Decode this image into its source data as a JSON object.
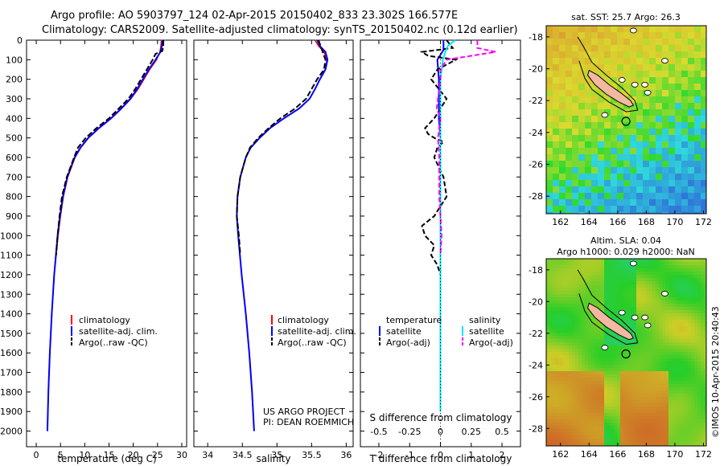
{
  "header": {
    "line1": "Argo profile: AO 5903797_124 02-Apr-2015 20150402_833 23.302S 166.577E",
    "line2": "Climatology: CARS2009. Satellite-adjusted climatology: synTS_20150402.nc (0.12d earlier)"
  },
  "credits": {
    "project": "US ARGO PROJECT",
    "pi": "PI: DEAN ROEMMICH",
    "imos": "©IMOS 10-Apr-2015 20:40:43"
  },
  "colors": {
    "climatology": "#ff0000",
    "satellite": "#0000ff",
    "argo": "#000000",
    "sat_salinity": "#00e5ff",
    "argo_salinity": "#ff00ff",
    "land": "#f2b8a0"
  },
  "chart_data": [
    {
      "type": "line",
      "id": "temperature",
      "xlabel": "temperature (deg C)",
      "ylabel": "",
      "xlim": [
        -2,
        31
      ],
      "ylim": [
        2080,
        0
      ],
      "xticks": [
        "0",
        "5",
        "10",
        "15",
        "20",
        "25",
        "30"
      ],
      "yticks": [
        "0",
        "100",
        "200",
        "300",
        "400",
        "500",
        "600",
        "700",
        "800",
        "900",
        "1000",
        "1100",
        "1200",
        "1300",
        "1400",
        "1500",
        "1600",
        "1700",
        "1800",
        "1900",
        "2000"
      ],
      "legend": [
        "climatology",
        "satellite-adj. clim.",
        "Argo(..raw -QC)"
      ],
      "series": [
        {
          "name": "climatology",
          "depth": [
            0,
            30,
            60,
            100,
            150,
            200,
            250,
            300,
            350,
            400,
            450,
            500,
            550,
            600,
            700,
            800,
            900,
            1000,
            1200,
            1400,
            1600,
            1800,
            2000
          ],
          "values": [
            25.8,
            25.7,
            25.5,
            24.8,
            23.4,
            22.2,
            21.0,
            19.5,
            17.6,
            15.5,
            13.0,
            10.8,
            9.2,
            8.0,
            6.5,
            5.6,
            5.0,
            4.5,
            3.7,
            3.2,
            2.8,
            2.5,
            2.3
          ]
        },
        {
          "name": "satellite-adj. clim.",
          "depth": [
            0,
            30,
            60,
            100,
            150,
            200,
            250,
            300,
            350,
            400,
            450,
            500,
            550,
            600,
            700,
            800,
            900,
            1000,
            1200,
            1400,
            1600,
            1800,
            2000
          ],
          "values": [
            26.0,
            25.9,
            25.6,
            24.6,
            23.2,
            22.0,
            20.8,
            19.4,
            17.5,
            15.4,
            12.9,
            10.7,
            9.1,
            7.9,
            6.4,
            5.5,
            4.9,
            4.4,
            3.7,
            3.2,
            2.8,
            2.5,
            2.3
          ]
        },
        {
          "name": "Argo(..raw -QC)",
          "depth": [
            0,
            30,
            55,
            70,
            100,
            150,
            200,
            250,
            300,
            350,
            400,
            450,
            500,
            550,
            600,
            700,
            800,
            900,
            1000,
            1100
          ],
          "values": [
            26.2,
            26.2,
            26.0,
            24.6,
            24.0,
            22.8,
            21.6,
            20.4,
            19.0,
            17.0,
            15.0,
            12.4,
            10.2,
            8.6,
            7.8,
            6.3,
            5.3,
            4.8,
            4.4,
            4.1
          ]
        }
      ]
    },
    {
      "type": "line",
      "id": "salinity",
      "xlabel": "salinity",
      "xlim": [
        33.8,
        36.1
      ],
      "ylim": [
        2080,
        0
      ],
      "xticks": [
        "34",
        "34.5",
        "35",
        "35.5",
        "36"
      ],
      "legend": [
        "climatology",
        "satellite-adj. clim.",
        "Argo(..raw -QC)"
      ],
      "series": [
        {
          "name": "climatology",
          "depth": [
            0,
            30,
            60,
            100,
            150,
            200,
            250,
            300,
            350,
            400,
            450,
            500,
            550,
            600,
            700,
            800,
            900,
            1000,
            1200,
            1400,
            1600,
            1800,
            2000
          ],
          "values": [
            35.55,
            35.6,
            35.68,
            35.72,
            35.7,
            35.62,
            35.55,
            35.47,
            35.32,
            35.1,
            34.9,
            34.75,
            34.62,
            34.55,
            34.47,
            34.43,
            34.42,
            34.44,
            34.49,
            34.55,
            34.6,
            34.64,
            34.67
          ]
        },
        {
          "name": "satellite-adj. clim.",
          "depth": [
            0,
            30,
            60,
            100,
            150,
            200,
            250,
            300,
            350,
            400,
            450,
            500,
            550,
            600,
            700,
            800,
            900,
            1000,
            1200,
            1400,
            1600,
            1800,
            2000
          ],
          "values": [
            35.58,
            35.62,
            35.7,
            35.73,
            35.7,
            35.62,
            35.55,
            35.47,
            35.32,
            35.1,
            34.9,
            34.75,
            34.62,
            34.55,
            34.47,
            34.43,
            34.42,
            34.44,
            34.49,
            34.55,
            34.6,
            34.64,
            34.67
          ]
        },
        {
          "name": "Argo(..raw -QC)",
          "depth": [
            0,
            30,
            60,
            100,
            150,
            200,
            250,
            300,
            350,
            400,
            450,
            500,
            550,
            600,
            700,
            800,
            900,
            1000,
            1100
          ],
          "values": [
            35.6,
            35.63,
            35.66,
            35.7,
            35.68,
            35.58,
            35.5,
            35.42,
            35.26,
            35.05,
            34.88,
            34.73,
            34.61,
            34.55,
            34.47,
            34.43,
            34.42,
            34.45,
            34.47
          ]
        }
      ]
    },
    {
      "type": "line",
      "id": "differences",
      "xlabel": "T difference from climatology",
      "xlabel_top": "S difference from climatology",
      "xlim": [
        -2.6,
        2.6
      ],
      "ylim": [
        2080,
        0
      ],
      "xticks_T": [
        "-2",
        "-1",
        "0",
        "1",
        "2"
      ],
      "xticks_S": [
        "-0.5",
        "-0.25",
        "0",
        "0.25",
        "0.5"
      ],
      "legend_headings": [
        "temperature",
        "salinity"
      ],
      "legend": [
        "satellite",
        "Argo(-adj)",
        "satellite",
        "Argo(-adj)"
      ],
      "series": [
        {
          "name": "temperature satellite",
          "depth": [
            0,
            50,
            100,
            200,
            300,
            400,
            500,
            600,
            800,
            1000,
            1200,
            1400,
            1600,
            1800,
            1900
          ],
          "values": [
            0.1,
            0.1,
            -0.1,
            -0.05,
            -0.05,
            -0.05,
            0.0,
            0.0,
            0.0,
            0.0,
            0.0,
            0.0,
            0.0,
            0.0,
            0.0
          ]
        },
        {
          "name": "temperature Argo(-adj)",
          "depth": [
            0,
            40,
            60,
            80,
            100,
            150,
            200,
            300,
            400,
            450,
            480,
            500,
            520,
            550,
            600,
            700,
            800,
            900,
            950,
            1000,
            1050,
            1100,
            1150,
            1200
          ],
          "values": [
            0.2,
            0.4,
            -0.6,
            -0.4,
            0.5,
            -0.1,
            -0.3,
            0.2,
            -0.2,
            -0.5,
            -0.4,
            -0.2,
            0.1,
            -0.1,
            -0.2,
            0.1,
            0.2,
            -0.2,
            -0.6,
            -0.5,
            -0.2,
            -0.3,
            -0.1,
            0.0
          ]
        },
        {
          "name": "salinity satellite",
          "depth": [
            0,
            30,
            60,
            100,
            150,
            200,
            300,
            400,
            500,
            700,
            900,
            1200,
            1500,
            1800,
            1900
          ],
          "values": [
            0.12,
            0.06,
            0.04,
            0.02,
            0.01,
            0.0,
            0.0,
            0.0,
            0.0,
            0.0,
            0.0,
            0.0,
            0.0,
            0.0,
            0.0
          ]
        },
        {
          "name": "salinity Argo(-adj)",
          "depth": [
            0,
            40,
            60,
            100,
            150,
            200,
            300,
            350,
            400,
            500,
            600,
            800,
            1000,
            1100
          ],
          "values": [
            0.3,
            0.3,
            0.45,
            0.05,
            0.0,
            0.0,
            -0.02,
            -0.03,
            0.0,
            -0.02,
            -0.01,
            -0.01,
            0.01,
            0.0
          ]
        }
      ]
    }
  ],
  "maps": {
    "sst": {
      "title": "sat. SST: 25.7 Argo: 26.3",
      "xticks": [
        "162",
        "164",
        "166",
        "168",
        "170",
        "172"
      ],
      "yticks": [
        "-18",
        "-20",
        "-22",
        "-24",
        "-26",
        "-28"
      ]
    },
    "sla": {
      "title_line1": "Altim. SLA: 0.04",
      "title_line2": "Argo h1000: 0.029 h2000: NaN",
      "xticks": [
        "162",
        "164",
        "166",
        "168",
        "170",
        "172"
      ],
      "yticks": [
        "-18",
        "-20",
        "-22",
        "-24",
        "-26",
        "-28"
      ]
    }
  }
}
